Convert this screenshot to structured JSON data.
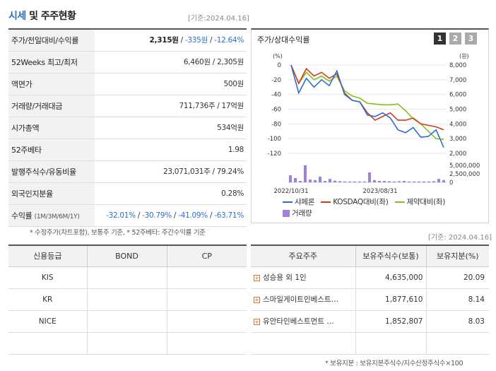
{
  "header": {
    "title_blue": "시세",
    "title_rest": "및 주주현황",
    "date": "[기준:2024.04.16]"
  },
  "market": {
    "rows": [
      {
        "label": "주가/전일대비/수익률"
      },
      {
        "label": "52Weeks 최고/최저",
        "value": "6,460원 / 2,305원"
      },
      {
        "label": "액면가",
        "value": "500원"
      },
      {
        "label": "거래량/거래대금",
        "value": "711,736주 / 17억원"
      },
      {
        "label": "시가총액",
        "value": "534억원"
      },
      {
        "label": "52주베타",
        "value": "1.98"
      },
      {
        "label": "발행주식수/유동비율",
        "value": "23,071,031주 / 79.24%"
      },
      {
        "label": "외국인지분율",
        "value": "0.28%"
      },
      {
        "label": "수익률"
      }
    ],
    "price": "2,315원",
    "change": "-335원",
    "change_pct": "-12.64%",
    "returns_label_sub": "(1M/3M/6M/1Y)",
    "returns": [
      "-32.01%",
      "-30.79%",
      "-41.09%",
      "-63.71%"
    ],
    "note": "* 수정주가(차트포함), 보통주 기준, * 52주베타: 주간수익률 기준"
  },
  "chart": {
    "title": "주가/상대수익률",
    "pages": [
      "1",
      "2",
      "3"
    ],
    "left_unit": "(%)",
    "right_unit": "(원)",
    "legend": {
      "s1": "샤페론",
      "s2": "KOSDAQ대비(좌)",
      "s3": "제약대비(좌)",
      "vol": "거래량"
    },
    "colors": {
      "s1": "#2c6fd1",
      "s2": "#d9391c",
      "s3": "#7fc31c",
      "vol": "#a27fd8"
    }
  },
  "chart_data": {
    "type": "line",
    "x_ticks": [
      "2022/10/31",
      "2023/08/31"
    ],
    "y_left": {
      "ticks": [
        "0",
        "-20",
        "-40",
        "-60",
        "-80",
        "-100",
        "-120"
      ],
      "range": [
        -120,
        0
      ]
    },
    "y_right": {
      "ticks": [
        "8,000",
        "7,000",
        "6,000",
        "5,000",
        "4,000",
        "3,000",
        "2,000"
      ],
      "range": [
        2000,
        8000
      ]
    },
    "vol_ticks": [
      "5,000,000",
      "2,500,000",
      "0"
    ],
    "series": [
      {
        "name": "샤페론",
        "values": [
          0,
          -38,
          -18,
          -30,
          -20,
          -28,
          -8,
          -40,
          -48,
          -50,
          -68,
          -70,
          -65,
          -72,
          -88,
          -92,
          -85,
          -98,
          -97,
          -88,
          -112
        ]
      },
      {
        "name": "KOSDAQ대비(좌)",
        "values": [
          0,
          -25,
          -5,
          -15,
          -10,
          -18,
          -12,
          -38,
          -48,
          -50,
          -65,
          -75,
          -70,
          -65,
          -75,
          -75,
          -72,
          -80,
          -82,
          -84,
          -88
        ]
      },
      {
        "name": "제약대비(좌)",
        "values": [
          0,
          -25,
          -10,
          -20,
          -15,
          -22,
          -15,
          -35,
          -42,
          -45,
          -52,
          -53,
          -54,
          -54,
          -53,
          -62,
          -73,
          -80,
          -90,
          -100,
          -101
        ]
      }
    ],
    "volume": [
      25,
      15,
      5,
      60,
      10,
      8,
      20,
      5,
      12,
      6,
      4,
      3,
      3,
      3,
      3,
      3,
      35,
      8,
      5,
      5,
      4,
      3,
      4,
      5,
      3,
      3,
      3,
      3,
      3,
      4,
      12,
      8
    ]
  },
  "credit": {
    "headers": [
      "신용등급",
      "BOND",
      "CP"
    ],
    "rows": [
      [
        "KIS",
        "",
        ""
      ],
      [
        "KR",
        "",
        ""
      ],
      [
        "NICE",
        "",
        ""
      ],
      [
        "",
        "",
        ""
      ]
    ]
  },
  "holders": {
    "date": "[기준: 2024.04.16]",
    "headers": [
      "주요주주",
      "보유주식수(보통)",
      "보유지분(%)"
    ],
    "rows": [
      {
        "name": "성승용 외 1인",
        "shares": "4,635,000",
        "pct": "20.09"
      },
      {
        "name": "스마일게이트인베스트…",
        "shares": "1,877,610",
        "pct": "8.14"
      },
      {
        "name": "유안타인베스트먼트 …",
        "shares": "1,852,807",
        "pct": "8.03"
      }
    ],
    "note": "* 보유지분 : 보유지분주식수/지수산정주식수×100"
  }
}
